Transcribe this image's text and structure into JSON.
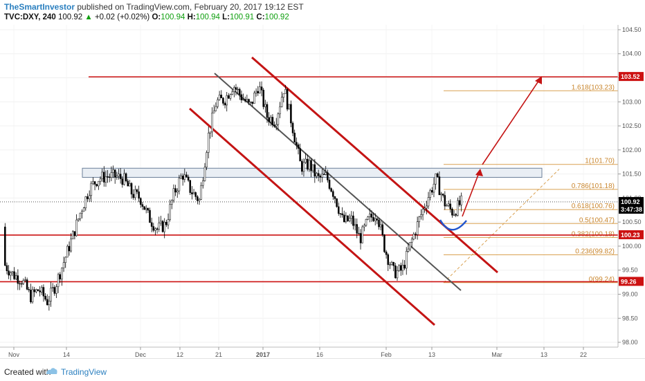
{
  "header": {
    "author": "TheSmartInvestor",
    "published": "published on TradingView.com, February 20, 2017 19:12 EST",
    "symbol": "TVC:DXY, 240",
    "last": "100.92",
    "change": "+0.02 (+0.02%)",
    "o_label": "O:",
    "o_value": "100.94",
    "h_label": "H:",
    "h_value": "100.94",
    "l_label": "L:",
    "l_value": "100.91",
    "c_label": "C:",
    "c_value": "100.92"
  },
  "footer": {
    "created_with": "Created with",
    "brand": "TradingView"
  },
  "colors": {
    "red_line": "#cc1111",
    "fib": "#d9a050",
    "channel": "#555555",
    "zone_fill": "#e9eef4",
    "zone_stroke": "#6b7f99",
    "cup": "#2255cc",
    "candle": "#000000"
  },
  "chart_data": {
    "type": "candlestick",
    "x_ticks": [
      "Nov",
      "14",
      "Dec",
      "12",
      "21",
      "2017",
      "16",
      "Feb",
      "13",
      "Mar",
      "13",
      "22"
    ],
    "y_ticks": [
      "104.50",
      "104.00",
      "103.50",
      "103.00",
      "102.50",
      "102.00",
      "101.50",
      "101.00",
      "100.50",
      "100.00",
      "99.50",
      "99.00",
      "98.50",
      "98.00"
    ],
    "ylim": [
      97.9,
      104.6
    ],
    "price_labels": [
      {
        "text": "103.52",
        "value": 103.52,
        "color": "#cc1111"
      },
      {
        "text": "100.92",
        "value": 100.92,
        "color": "#000000"
      },
      {
        "text": "3:47:38",
        "value": 100.76,
        "color": "#000000"
      },
      {
        "text": "100.23",
        "value": 100.23,
        "color": "#cc1111"
      },
      {
        "text": "99.26",
        "value": 99.26,
        "color": "#cc1111"
      }
    ],
    "horizontal_lines": [
      103.52,
      100.23,
      99.26
    ],
    "last_price": 100.92,
    "fibonacci": [
      {
        "label": "1.618(103.23)",
        "value": 103.23
      },
      {
        "label": "1(101.70)",
        "value": 101.7
      },
      {
        "label": "0.786(101.18)",
        "value": 101.18
      },
      {
        "label": "0.618(100.76)",
        "value": 100.76
      },
      {
        "label": "0.5(100.47)",
        "value": 100.47
      },
      {
        "label": "0.382(100.18)",
        "value": 100.18
      },
      {
        "label": "0.236(99.82)",
        "value": 99.82
      },
      {
        "label": "0(99.24)",
        "value": 99.24
      }
    ],
    "resistance_zone": [
      101.43,
      101.62
    ],
    "price_path": [
      [
        100.4,
        98.8
      ],
      [
        100.2,
        98.6
      ],
      [
        100.3,
        98.3
      ],
      [
        100.0,
        97.9
      ],
      [
        99.9,
        98.3
      ],
      [
        99.1,
        98.6
      ],
      [
        99.3,
        99.1
      ],
      [
        100.0,
        99.4
      ],
      [
        100.5,
        99.9
      ],
      [
        101.0,
        100.5
      ],
      [
        101.2,
        101.2
      ],
      [
        101.3,
        101.5
      ],
      [
        101.0,
        101.9
      ],
      [
        101.3,
        101.6
      ],
      [
        101.5,
        101.3
      ],
      [
        101.2,
        101.0
      ],
      [
        101.1,
        100.9
      ],
      [
        100.6,
        100.6
      ],
      [
        100.3,
        100.4
      ],
      [
        100.4,
        100.5
      ],
      [
        101.0,
        101.2
      ],
      [
        101.6,
        101.4
      ],
      [
        101.2,
        101.1
      ],
      [
        100.9,
        101.0
      ],
      [
        102.1,
        102.4
      ],
      [
        102.9,
        103.1
      ],
      [
        103.1,
        103.0
      ],
      [
        103.3,
        103.4
      ],
      [
        103.0,
        103.2
      ],
      [
        102.9,
        102.9
      ],
      [
        103.3,
        103.4
      ],
      [
        102.8,
        102.6
      ],
      [
        102.4,
        102.8
      ],
      [
        103.2,
        103.4
      ],
      [
        102.7,
        102.3
      ],
      [
        101.5,
        101.8
      ],
      [
        101.8,
        101.6
      ],
      [
        101.3,
        101.5
      ],
      [
        101.6,
        101.3
      ],
      [
        101.1,
        101.0
      ],
      [
        100.4,
        100.6
      ],
      [
        100.7,
        100.4
      ],
      [
        100.2,
        100.1
      ],
      [
        100.6,
        100.5
      ],
      [
        100.8,
        100.6
      ],
      [
        100.1,
        99.7
      ],
      [
        99.4,
        99.5
      ],
      [
        99.7,
        99.3
      ],
      [
        100.0,
        100.1
      ],
      [
        100.6,
        100.5
      ],
      [
        100.9,
        101.1
      ],
      [
        101.5,
        101.3
      ],
      [
        101.0,
        100.8
      ],
      [
        100.6,
        100.8
      ],
      [
        100.9,
        100.92
      ]
    ]
  }
}
